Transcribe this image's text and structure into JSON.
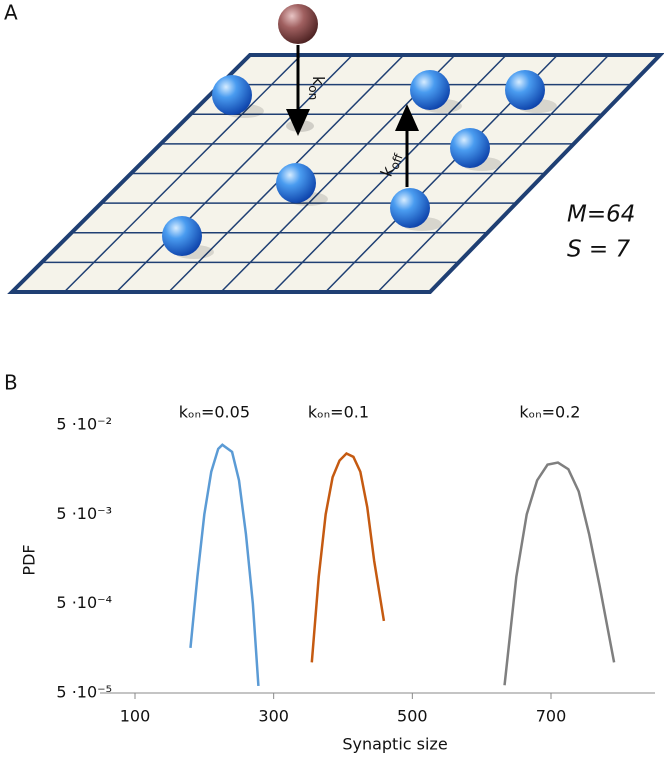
{
  "panel_a": {
    "label": "A",
    "k_on": {
      "symbol": "k",
      "subscript": "on"
    },
    "k_off": {
      "symbol": "k",
      "subscript": "off"
    },
    "m_text": "M=64",
    "s_text": "S = 7"
  },
  "chart_data": {
    "type": "line",
    "panel_label": "B",
    "x_label": "Synaptic size",
    "y_label": "PDF",
    "xlim": [
      100,
      850
    ],
    "xticks": [
      100,
      300,
      500,
      700
    ],
    "ylim": [
      5e-05,
      0.05
    ],
    "log_y": true,
    "yticks": [
      {
        "value": 5e-05,
        "label": "5 ·10⁻⁵"
      },
      {
        "value": 0.0005,
        "label": "5 ·10⁻⁴"
      },
      {
        "value": 0.005,
        "label": "5 ·10⁻³"
      },
      {
        "value": 0.05,
        "label": "5 ·10⁻²"
      }
    ],
    "series": [
      {
        "name": "kₒₙ=0.05",
        "color": "#5b9bd5",
        "x": [
          180,
          190,
          200,
          210,
          220,
          226,
          240,
          250,
          260,
          270,
          278
        ],
        "values": [
          0.00016,
          0.001,
          0.005,
          0.015,
          0.027,
          0.03,
          0.025,
          0.012,
          0.003,
          0.0005,
          6e-05
        ]
      },
      {
        "name": "kₒₙ=0.1",
        "color": "#c55a11",
        "x": [
          355,
          365,
          375,
          385,
          395,
          405,
          415,
          425,
          435,
          445,
          459
        ],
        "values": [
          0.00011,
          0.001,
          0.005,
          0.013,
          0.02,
          0.024,
          0.022,
          0.015,
          0.006,
          0.0015,
          0.00032
        ]
      },
      {
        "name": "kₒₙ=0.2",
        "color": "#7f7f7f",
        "x": [
          633,
          650,
          665,
          680,
          695,
          710,
          725,
          740,
          755,
          770,
          791
        ],
        "values": [
          6.1e-05,
          0.001,
          0.005,
          0.012,
          0.018,
          0.019,
          0.016,
          0.009,
          0.003,
          0.0008,
          0.00011
        ]
      }
    ]
  }
}
